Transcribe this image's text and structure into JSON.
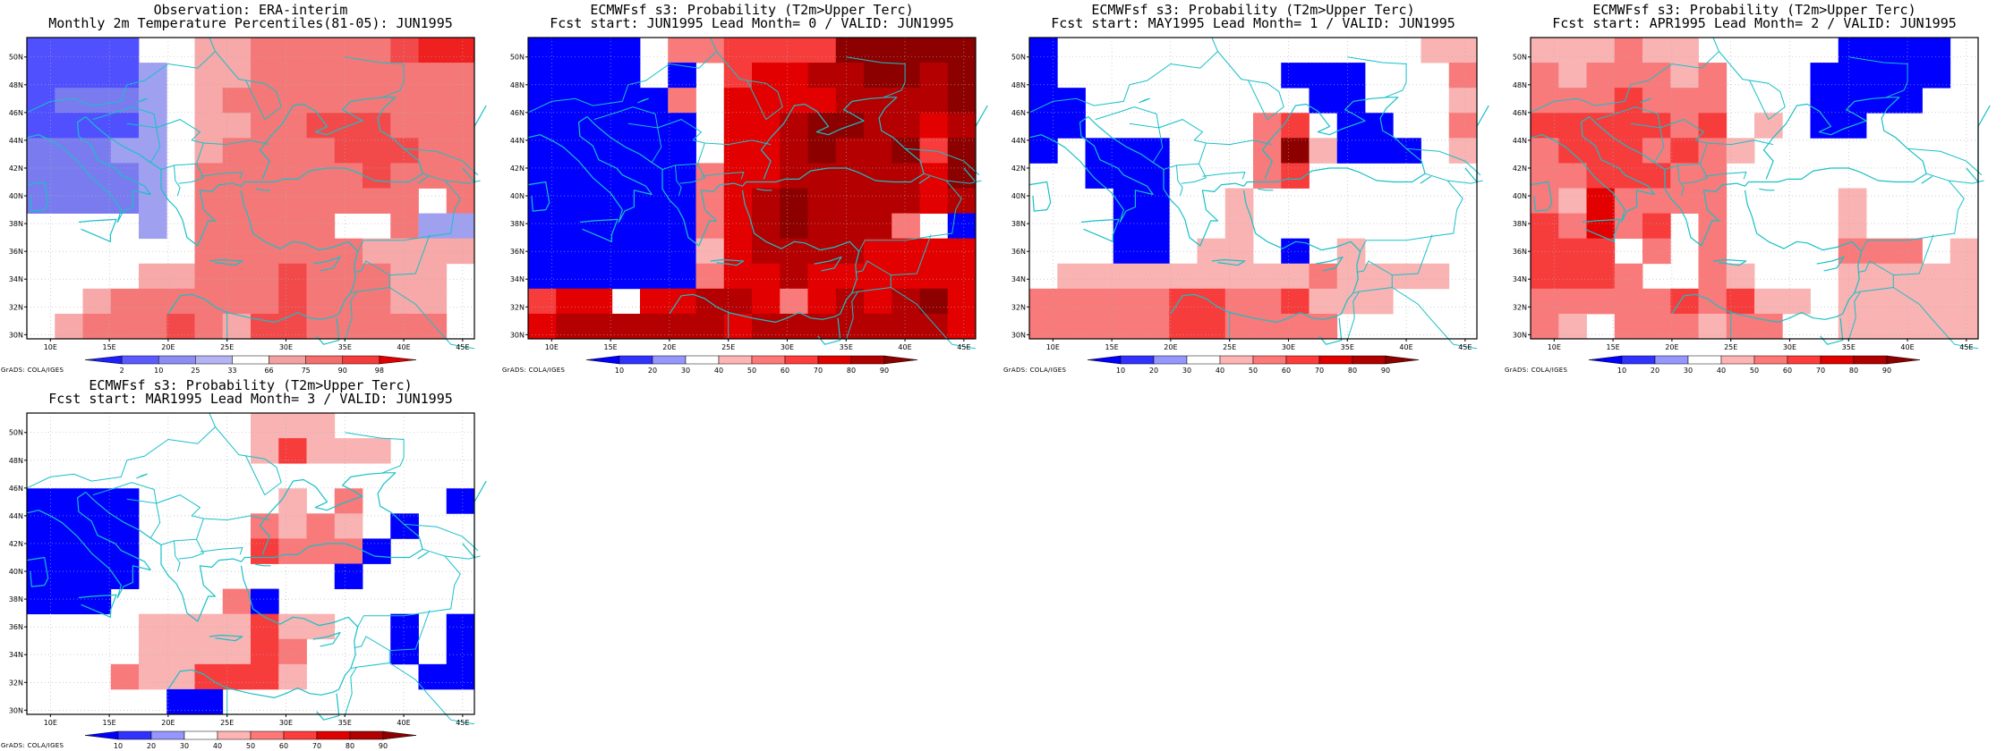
{
  "credit_text": "GrADS: COLA/IGES",
  "x_ticks": [
    "10E",
    "15E",
    "20E",
    "25E",
    "30E",
    "35E",
    "40E",
    "45E"
  ],
  "y_ticks": [
    "30N",
    "32N",
    "34N",
    "36N",
    "38N",
    "40N",
    "42N",
    "44N",
    "46N",
    "48N",
    "50N"
  ],
  "palettes": {
    "percentile": {
      "labels": [
        "2",
        "10",
        "25",
        "33",
        "66",
        "75",
        "90",
        "98"
      ],
      "colors": [
        "#1e1eff",
        "#5a5aff",
        "#8c8cf5",
        "#b4b4f5",
        "#ffffff",
        "#f5a0a0",
        "#f56e6e",
        "#f53c3c",
        "#e00000"
      ],
      "class_colors": {
        "b1": "#5050ff",
        "b2": "#7b7bf0",
        "b3": "#a0a0f0",
        "w": "#ffffff",
        "r1": "#f7a8a8",
        "r2": "#f57878",
        "r3": "#f24a4a",
        "r4": "#ee2020"
      }
    },
    "probability": {
      "labels": [
        "10",
        "20",
        "30",
        "40",
        "50",
        "60",
        "70",
        "80",
        "90"
      ],
      "colors": [
        "#0000ff",
        "#3232ff",
        "#9696ff",
        "#ffffff",
        "#ffb4b4",
        "#ff7878",
        "#ff3c3c",
        "#e00000",
        "#b00000",
        "#8c0000"
      ],
      "class_colors": {
        "B": "#0000ff",
        "w": "#ffffff",
        "p1": "#f9b3b3",
        "p2": "#f87a7a",
        "p3": "#f73c3c",
        "p4": "#e30000",
        "p5": "#b40000",
        "p6": "#8c0000"
      }
    }
  },
  "panels": [
    {
      "title_line1": "Observation: ERA-interim",
      "title_line2": "Monthly 2m Temperature Percentiles(81-05): JUN1995",
      "palette": "percentile",
      "grid_rows_north_to_south": [
        "b1 b1 b1 b1 w  w  r1 r1 r2 r2 r2 r2 r2 r3 r4 r4",
        "b1 b1 b1 b1 b3 w  r1 r1 r2 r2 r2 r2 r2 r2 r2 r2",
        "b1 b2 b2 b2 b3 w  r1 r2 r2 r2 r2 r2 r2 r2 r2 r2",
        "b1 b1 b1 b1 b3 w  r1 r1 r2 r2 r3 r3 r3 r2 r2 r2",
        "b2 b2 b2 b3 b3 w  r1 r2 r2 r2 r2 r3 r3 r3 r2 r2",
        "b2 b2 b2 b2 b3 w  r2 r2 r2 r2 r2 r2 r3 r2 r2 r2",
        "b2 b2 b2 b2 b3 w  r2 r2 r2 r2 r2 r2 r2 r2 w  r2",
        "w  w  w  w  b3 w  r2 r2 r2 r2 r2 w  w  r2 b3 b3",
        "w  w  w  w  w  w  r2 r2 r2 r2 r2 r2 r1 r1 r1 r1",
        "w  w  w  w  r1 r1 r2 r2 r2 r3 r2 r2 r2 r1 r1 w",
        "w  w  r1 r2 r2 r2 r2 r2 r2 r3 r2 r2 r2 r1 r1 w",
        "w  r1 r2 r2 r2 r3 r2 r1 r3 r3 r2 r2 r2 r2 r2 w"
      ]
    },
    {
      "title_line1": "ECMWFsf s3: Probability (T2m>Upper Terc)",
      "title_line2": "Fcst start: JUN1995  Lead Month= 0 / VALID: JUN1995",
      "palette": "probability",
      "grid_rows_north_to_south": [
        "B  B  B  B  w  p2 p2 p3 p3 p3 p3 p6 p6 p6 p6 p6",
        "B  B  B  B  w  B  w  p3 p4 p4 p5 p5 p6 p6 p5 p6",
        "B  B  B  B  B  p2 w  p4 p4 p4 p4 p5 p5 p5 p5 p6",
        "B  B  B  B  B  B  w  p4 p4 p5 p6 p6 p5 p5 p4 p5",
        "B  B  B  B  B  B  w  p4 p4 p5 p6 p5 p5 p6 p3 p6",
        "B  B  B  B  B  B  p2 p4 p4 p5 p5 p5 p5 p5 p4 p6",
        "B  B  B  B  B  B  p2 p4 p5 p6 p5 p5 p5 p5 p4 p5",
        "B  B  B  B  B  B  p2 p4 p5 p6 p5 p5 p5 p2 w  B",
        "B  B  B  B  B  B  p1 p4 p5 p5 p5 p5 p4 p4 p4 p4",
        "B  B  B  B  B  B  p2 p4 p4 p5 p4 p4 p4 p4 p4 p4",
        "p3 p4 p4 w  p4 p4 p5 p5 p4 p2 p4 p5 p4 p5 p6 p4",
        "p4 p5 p5 p5 p5 p5 p5 p4 p5 p5 p5 p5 p5 p5 p5 p4"
      ]
    },
    {
      "title_line1": "ECMWFsf s3: Probability (T2m>Upper Terc)",
      "title_line2": "Fcst start: MAY1995  Lead Month= 1 / VALID: JUN1995",
      "palette": "probability",
      "grid_rows_north_to_south": [
        "B  w  w  w  w  w  w  w  w  w  w  w  w  w  p1 p1",
        "B  w  w  w  w  w  w  w  w  B  B  B  w  w  w  p2",
        "B  B  w  w  w  w  w  w  w  w  B  B  w  w  w  p1",
        "B  B  w  w  w  w  w  w  p2 p3 w  B  B  w  w  p2",
        "B  w  B  B  B  w  w  w  p2 p6 p1 B  B  B  w  p1",
        "w  w  B  B  B  w  w  w  p2 p3 w  w  w  w  w  w",
        "w  w  w  B  B  w  w  p1 w  w  w  w  w  w  w  w",
        "w  w  w  B  B  w  w  p1 w  w  w  w  w  w  w  w",
        "w  w  w  B  B  w  p1 p1 w  B  w  p1 w  w  w  w",
        "w  p1 p1 p1 p1 p1 p1 p1 p1 p1 p2 p1 p1 p1 p1 w",
        "p2 p2 p2 p2 p2 p3 p3 p2 p2 p3 p1 p1 p1 w  w  w",
        "p2 p2 p2 p2 p2 p3 p3 p2 p2 p2 p2 w  w  w  w  w"
      ]
    },
    {
      "title_line1": "ECMWFsf s3: Probability (T2m>Upper Terc)",
      "title_line2": "Fcst start: APR1995  Lead Month= 2 / VALID: JUN1995",
      "palette": "probability",
      "grid_rows_north_to_south": [
        "p1 p1 p1 p2 p1 p1 w  w  w  w  w  B  B  B  B  w",
        "p2 p1 p2 p2 p2 p1 p2 w  w  w  B  B  B  B  B  w",
        "p2 p2 p2 p3 p2 p2 p2 w  w  w  B  B  B  B  w  w",
        "p3 p3 p3 p3 p3 p2 p3 w  p1 w  B  B  w  w  w  w",
        "p2 p3 p3 p3 p2 p3 p2 p1 w  w  w  w  w  w  w  w",
        "p2 p2 p3 p3 p3 p2 p2 w  w  w  w  w  w  w  w  w",
        "p2 p1 p4 p2 p2 p2 p2 w  w  w  w  p1 w  w  w  w",
        "p3 p2 p4 p2 p3 w  p2 w  w  w  w  p1 w  w  w  w",
        "p3 p3 p3 w  p2 w  p2 w  w  w  w  p2 p2 p2 w  p1",
        "p3 p3 p3 p2 w  w  p2 p1 w  w  w  p1 p1 p1 p1 p1",
        "p2 p2 p2 p2 p2 p3 p2 p3 p1 p1 w  p1 p1 p1 p1 p1",
        "p2 p1 w  p2 p2 p2 p1 p2 p2 w  w  p1 p1 p1 p1 p1"
      ]
    },
    {
      "title_line1": "ECMWFsf s3: Probability (T2m>Upper Terc)",
      "title_line2": "Fcst start: MAR1995  Lead Month= 3 / VALID: JUN1995",
      "palette": "probability",
      "grid_rows_north_to_south": [
        "w  w  w  w  w  w  w  w  p1 p1 p1 w  w  w  w  w",
        "w  w  w  w  w  w  w  w  p1 p3 p1 p1 p1 w  w  w",
        "w  w  w  w  w  w  w  w  w  w  w  w  w  w  w  w",
        "B  B  B  B  w  w  w  w  w  p1 w  p2 w  w  w  B",
        "B  B  B  B  w  w  w  w  p2 p1 p2 p1 w  B  w  w",
        "B  B  B  B  w  w  w  w  p3 p2 p2 p2 B  w  w  w",
        "B  B  B  B  w  w  w  w  w  w  w  B  w  w  w  w",
        "B  B  B  w  w  w  w  p2 B  w  w  w  w  w  w  w",
        "w  w  w  w  p1 p1 p1 p1 p3 p1 p1 w  w  B  w  B",
        "w  w  w  w  p1 p1 p1 p1 p3 p2 w  w  w  B  w  B",
        "w  w  w  p2 p1 p1 p3 p3 p3 p1 w  w  w  w  B  B",
        "w  w  w  w  w  B  B  w  w  w  w  w  w  w  w  w"
      ]
    }
  ]
}
